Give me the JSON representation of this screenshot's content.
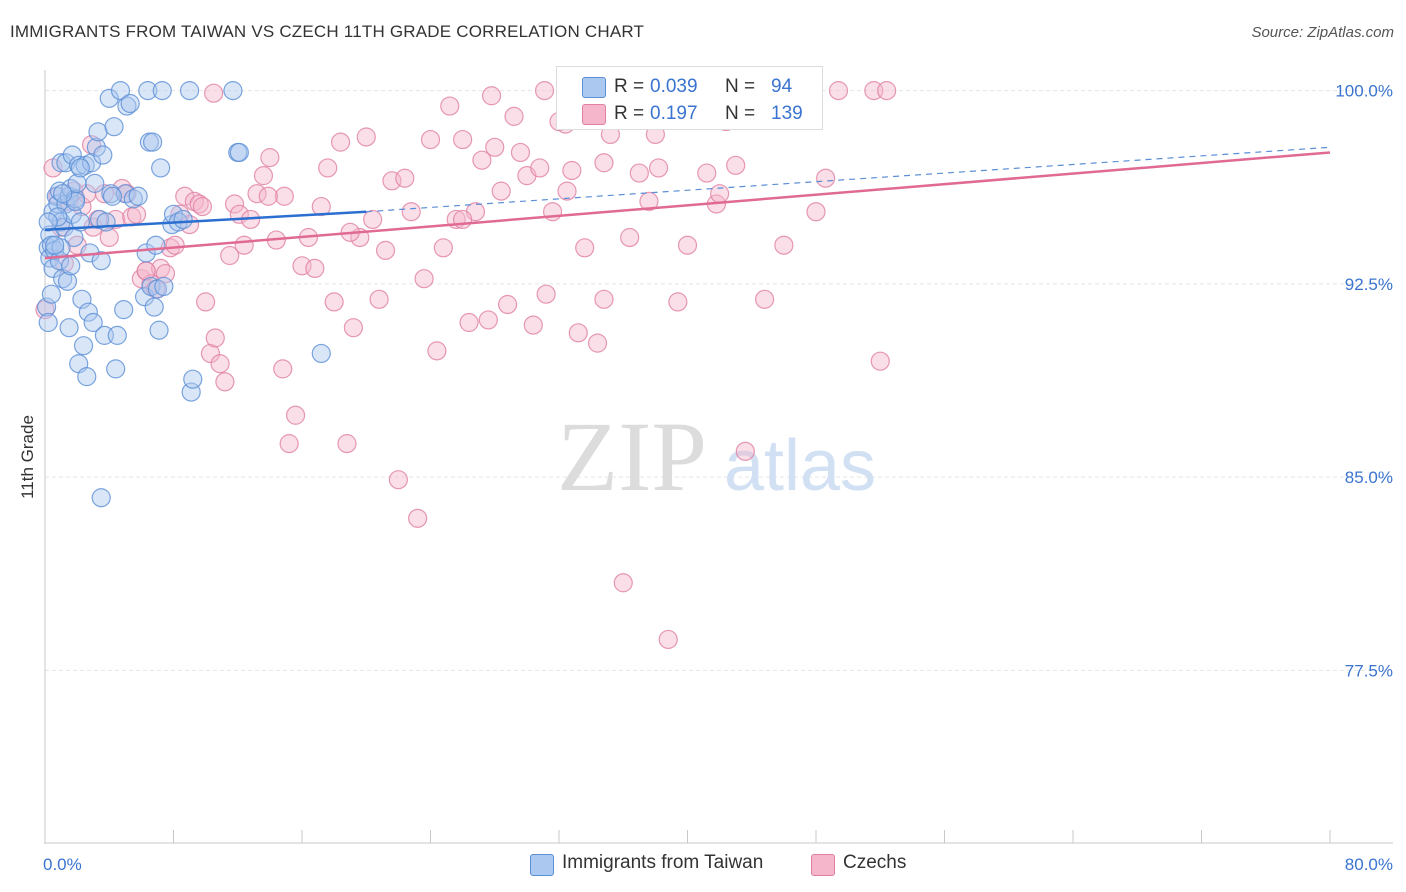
{
  "header": {
    "title": "IMMIGRANTS FROM TAIWAN VS CZECH 11TH GRADE CORRELATION CHART",
    "source": "Source: ZipAtlas.com"
  },
  "watermark": {
    "zip": "ZIP",
    "atlas": "atlas"
  },
  "stats_legend": {
    "r_label": "R =",
    "n_label": "N =",
    "rows": [
      {
        "r": "0.039",
        "n": "94"
      },
      {
        "r": "0.197",
        "n": "139"
      }
    ]
  },
  "colors": {
    "series1_fill": "#aac8f0",
    "series1_stroke": "#5b8ed6",
    "series1_line": "#2b6fd0",
    "series2_fill": "#f5b6cb",
    "series2_stroke": "#e07fa2",
    "series2_line": "#e06a94",
    "tick_label": "#3a74d0",
    "grid": "#e5e5e5"
  },
  "chart_data": {
    "type": "scatter",
    "title": "IMMIGRANTS FROM TAIWAN VS CZECH 11TH GRADE CORRELATION CHART",
    "xlabel": "",
    "ylabel": "11th Grade",
    "xlim": [
      0,
      80
    ],
    "ylim": [
      70.8,
      100.8
    ],
    "x_tick_labels": [
      "0.0%",
      "80.0%"
    ],
    "y_ticks": [
      100.0,
      92.5,
      85.0,
      77.5
    ],
    "y_tick_labels": [
      "100.0%",
      "92.5%",
      "85.0%",
      "77.5%"
    ],
    "grid": true,
    "legend_position": "bottom",
    "series": [
      {
        "name": "Immigrants from Taiwan",
        "r": 0.039,
        "n": 94,
        "trend": {
          "x": [
            0,
            20
          ],
          "y": [
            94.6,
            95.3
          ],
          "solid": true
        },
        "trend_dashed": {
          "x": [
            20,
            80
          ],
          "y": [
            95.3,
            97.8
          ]
        },
        "points": [
          [
            0.1,
            91.6
          ],
          [
            0.2,
            93.9
          ],
          [
            0.2,
            91.0
          ],
          [
            0.3,
            94.4
          ],
          [
            0.3,
            93.5
          ],
          [
            0.4,
            92.1
          ],
          [
            0.4,
            94.0
          ],
          [
            0.5,
            95.3
          ],
          [
            0.5,
            93.1
          ],
          [
            0.6,
            93.8
          ],
          [
            0.7,
            95.9
          ],
          [
            0.8,
            95.6
          ],
          [
            0.9,
            96.1
          ],
          [
            0.9,
            93.4
          ],
          [
            1.0,
            97.2
          ],
          [
            1.0,
            94.9
          ],
          [
            1.1,
            92.7
          ],
          [
            1.2,
            94.7
          ],
          [
            1.3,
            97.2
          ],
          [
            1.3,
            95.6
          ],
          [
            1.4,
            92.6
          ],
          [
            1.5,
            90.8
          ],
          [
            1.5,
            95.9
          ],
          [
            1.6,
            96.2
          ],
          [
            1.6,
            93.2
          ],
          [
            1.7,
            97.5
          ],
          [
            1.7,
            95.2
          ],
          [
            1.8,
            94.3
          ],
          [
            1.9,
            95.8
          ],
          [
            2.0,
            96.4
          ],
          [
            2.1,
            97.1
          ],
          [
            2.1,
            89.4
          ],
          [
            2.2,
            94.9
          ],
          [
            2.3,
            91.9
          ],
          [
            2.4,
            90.1
          ],
          [
            2.5,
            97.1
          ],
          [
            2.6,
            88.9
          ],
          [
            2.7,
            91.4
          ],
          [
            2.8,
            93.7
          ],
          [
            2.9,
            97.2
          ],
          [
            3.0,
            91.0
          ],
          [
            3.1,
            96.4
          ],
          [
            3.2,
            97.8
          ],
          [
            3.3,
            98.4
          ],
          [
            3.4,
            95.0
          ],
          [
            3.5,
            93.4
          ],
          [
            3.6,
            97.5
          ],
          [
            3.7,
            90.5
          ],
          [
            3.8,
            94.9
          ],
          [
            4.0,
            99.7
          ],
          [
            4.1,
            96.0
          ],
          [
            4.3,
            98.6
          ],
          [
            4.4,
            89.2
          ],
          [
            4.5,
            90.5
          ],
          [
            4.7,
            100.0
          ],
          [
            4.9,
            91.5
          ],
          [
            5.0,
            96.0
          ],
          [
            5.1,
            99.4
          ],
          [
            5.3,
            99.5
          ],
          [
            5.5,
            95.8
          ],
          [
            5.8,
            95.9
          ],
          [
            6.2,
            92.0
          ],
          [
            6.3,
            93.7
          ],
          [
            6.4,
            100.0
          ],
          [
            6.5,
            98.0
          ],
          [
            6.6,
            92.4
          ],
          [
            6.7,
            98.0
          ],
          [
            6.8,
            91.6
          ],
          [
            6.9,
            94.0
          ],
          [
            7.0,
            92.3
          ],
          [
            7.1,
            90.7
          ],
          [
            7.2,
            97.0
          ],
          [
            7.3,
            100.0
          ],
          [
            7.4,
            92.4
          ],
          [
            7.9,
            94.8
          ],
          [
            8.0,
            95.2
          ],
          [
            8.3,
            94.9
          ],
          [
            8.6,
            95.0
          ],
          [
            9.1,
            88.3
          ],
          [
            9.2,
            88.8
          ],
          [
            11.7,
            100.0
          ],
          [
            12.0,
            97.6
          ],
          [
            12.1,
            97.6
          ],
          [
            17.2,
            89.8
          ],
          [
            3.5,
            84.2
          ],
          [
            2.2,
            97.0
          ],
          [
            1.0,
            93.9
          ],
          [
            0.6,
            94.0
          ],
          [
            0.8,
            95.1
          ],
          [
            1.9,
            95.7
          ],
          [
            0.2,
            94.9
          ],
          [
            1.1,
            96.0
          ],
          [
            4.2,
            95.9
          ],
          [
            9.0,
            100.0
          ]
        ]
      },
      {
        "name": "Czechs",
        "r": 0.197,
        "n": 139,
        "trend": {
          "x": [
            0,
            80
          ],
          "y": [
            93.5,
            97.6
          ],
          "solid": true
        },
        "points": [
          [
            0.0,
            91.5
          ],
          [
            0.8,
            95.9
          ],
          [
            1.0,
            94.7
          ],
          [
            1.2,
            93.3
          ],
          [
            1.5,
            95.7
          ],
          [
            1.8,
            96.1
          ],
          [
            2.0,
            94.0
          ],
          [
            2.3,
            95.5
          ],
          [
            2.6,
            96.0
          ],
          [
            3.0,
            94.7
          ],
          [
            3.3,
            95.0
          ],
          [
            3.7,
            96.0
          ],
          [
            4.0,
            94.3
          ],
          [
            4.4,
            95.0
          ],
          [
            4.8,
            96.2
          ],
          [
            5.1,
            96.0
          ],
          [
            5.4,
            95.1
          ],
          [
            5.7,
            95.2
          ],
          [
            6.0,
            92.7
          ],
          [
            6.3,
            93.0
          ],
          [
            6.6,
            92.5
          ],
          [
            6.9,
            92.3
          ],
          [
            7.2,
            93.1
          ],
          [
            7.5,
            92.9
          ],
          [
            7.8,
            93.9
          ],
          [
            8.1,
            94.0
          ],
          [
            8.4,
            95.2
          ],
          [
            8.7,
            95.9
          ],
          [
            9.0,
            94.8
          ],
          [
            9.3,
            95.7
          ],
          [
            9.6,
            95.6
          ],
          [
            10.0,
            91.8
          ],
          [
            10.3,
            89.8
          ],
          [
            10.6,
            90.4
          ],
          [
            10.9,
            89.4
          ],
          [
            11.2,
            88.7
          ],
          [
            11.5,
            93.6
          ],
          [
            11.8,
            95.6
          ],
          [
            12.1,
            95.2
          ],
          [
            12.4,
            94.0
          ],
          [
            12.8,
            95.0
          ],
          [
            13.2,
            96.0
          ],
          [
            13.6,
            96.7
          ],
          [
            14.0,
            97.4
          ],
          [
            14.4,
            94.2
          ],
          [
            14.8,
            89.2
          ],
          [
            15.2,
            86.3
          ],
          [
            15.6,
            87.4
          ],
          [
            16.0,
            93.2
          ],
          [
            16.4,
            94.3
          ],
          [
            16.8,
            93.1
          ],
          [
            17.2,
            95.5
          ],
          [
            17.6,
            97.0
          ],
          [
            18.0,
            91.8
          ],
          [
            18.4,
            98.0
          ],
          [
            18.8,
            86.3
          ],
          [
            19.2,
            90.8
          ],
          [
            19.6,
            94.3
          ],
          [
            20.0,
            98.2
          ],
          [
            20.4,
            95.0
          ],
          [
            20.8,
            91.9
          ],
          [
            21.2,
            93.8
          ],
          [
            21.6,
            96.5
          ],
          [
            22.0,
            84.9
          ],
          [
            22.4,
            96.6
          ],
          [
            22.8,
            95.3
          ],
          [
            23.2,
            83.4
          ],
          [
            23.6,
            92.7
          ],
          [
            24.0,
            98.1
          ],
          [
            24.4,
            89.9
          ],
          [
            24.8,
            93.9
          ],
          [
            25.2,
            99.4
          ],
          [
            25.6,
            95.0
          ],
          [
            26.0,
            98.1
          ],
          [
            26.4,
            91.0
          ],
          [
            26.8,
            95.3
          ],
          [
            27.2,
            97.3
          ],
          [
            27.6,
            91.1
          ],
          [
            28.0,
            97.8
          ],
          [
            28.4,
            96.1
          ],
          [
            28.8,
            91.7
          ],
          [
            29.2,
            99.0
          ],
          [
            29.6,
            97.6
          ],
          [
            30.0,
            96.7
          ],
          [
            30.4,
            90.9
          ],
          [
            30.8,
            97.0
          ],
          [
            31.2,
            92.1
          ],
          [
            31.6,
            95.3
          ],
          [
            32.0,
            98.8
          ],
          [
            32.4,
            98.7
          ],
          [
            32.8,
            96.9
          ],
          [
            33.2,
            90.6
          ],
          [
            33.6,
            93.9
          ],
          [
            34.0,
            100.0
          ],
          [
            34.4,
            90.2
          ],
          [
            34.8,
            91.9
          ],
          [
            35.2,
            98.3
          ],
          [
            35.6,
            99.0
          ],
          [
            36.0,
            80.9
          ],
          [
            36.4,
            94.3
          ],
          [
            37.0,
            96.8
          ],
          [
            37.6,
            95.7
          ],
          [
            38.2,
            97.0
          ],
          [
            38.8,
            78.7
          ],
          [
            39.4,
            91.8
          ],
          [
            40.0,
            94.0
          ],
          [
            40.6,
            100.0
          ],
          [
            41.2,
            96.8
          ],
          [
            41.8,
            95.6
          ],
          [
            42.4,
            98.8
          ],
          [
            43.0,
            97.1
          ],
          [
            43.6,
            86.0
          ],
          [
            44.2,
            99.2
          ],
          [
            44.8,
            91.9
          ],
          [
            45.4,
            100.0
          ],
          [
            46.0,
            94.0
          ],
          [
            47.0,
            100.0
          ],
          [
            48.0,
            95.3
          ],
          [
            48.6,
            96.6
          ],
          [
            49.4,
            100.0
          ],
          [
            51.6,
            100.0
          ],
          [
            52.0,
            89.5
          ],
          [
            52.4,
            100.0
          ],
          [
            0.5,
            97.0
          ],
          [
            2.9,
            97.9
          ],
          [
            6.3,
            93.0
          ],
          [
            9.8,
            95.5
          ],
          [
            14.9,
            95.9
          ],
          [
            19.0,
            94.5
          ],
          [
            26.0,
            95.0
          ],
          [
            32.5,
            96.1
          ],
          [
            34.8,
            97.2
          ],
          [
            38.0,
            98.3
          ],
          [
            42.0,
            96.0
          ],
          [
            10.5,
            99.9
          ],
          [
            27.8,
            99.8
          ],
          [
            31.1,
            100.0
          ],
          [
            41.9,
            99.1
          ],
          [
            13.9,
            95.9
          ]
        ]
      }
    ]
  },
  "bottom_legend": {
    "items": [
      {
        "label": "Immigrants from Taiwan"
      },
      {
        "label": "Czechs"
      }
    ]
  }
}
